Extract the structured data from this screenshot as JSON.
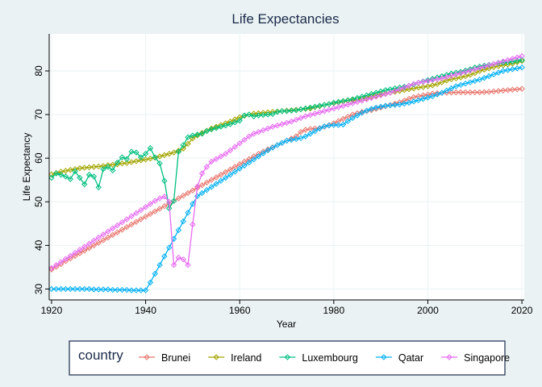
{
  "chart_data": {
    "type": "line",
    "title": "Life Expectancies",
    "xlabel": "Year",
    "ylabel": "Life Expectancy",
    "xlim": [
      1919.5,
      2020.5
    ],
    "ylim": [
      27.5,
      88.5
    ],
    "xticks": [
      1920,
      1940,
      1960,
      1980,
      2000,
      2020
    ],
    "yticks": [
      30,
      40,
      50,
      60,
      70,
      80
    ],
    "grid": true,
    "legend_title": "country",
    "legend_position": "bottom",
    "x_start": 1920,
    "series": [
      {
        "name": "Brunei",
        "color": "#e8766d",
        "values": [
          34.5,
          35.1,
          35.7,
          36.4,
          37.0,
          37.6,
          38.2,
          38.8,
          39.4,
          40.0,
          40.6,
          41.2,
          41.8,
          42.4,
          43.0,
          43.6,
          44.2,
          44.8,
          45.4,
          46.0,
          46.6,
          47.2,
          47.8,
          48.4,
          49.0,
          49.6,
          50.2,
          50.8,
          51.4,
          52.0,
          52.6,
          53.2,
          53.8,
          54.4,
          55.0,
          55.6,
          56.2,
          56.8,
          57.4,
          58.0,
          58.6,
          59.2,
          59.8,
          60.4,
          61.0,
          61.5,
          62.0,
          62.5,
          63.0,
          63.5,
          64.0,
          64.5,
          65.0,
          66.0,
          66.5,
          66.7,
          66.8,
          66.9,
          67.2,
          67.6,
          68.0,
          68.5,
          69.0,
          69.5,
          70.0,
          70.3,
          70.6,
          70.8,
          71.0,
          71.3,
          71.6,
          71.9,
          72.2,
          72.5,
          72.8,
          73.2,
          73.6,
          74.0,
          74.2,
          74.4,
          74.6,
          74.8,
          74.9,
          74.95,
          75.0,
          75.05,
          75.1,
          75.1,
          75.1,
          75.1,
          75.1,
          75.1,
          75.15,
          75.2,
          75.3,
          75.4,
          75.5,
          75.6,
          75.7,
          75.8,
          75.9
        ]
      },
      {
        "name": "Ireland",
        "color": "#a3a500",
        "values": [
          56.3,
          56.6,
          56.9,
          57.1,
          57.3,
          57.5,
          57.7,
          57.8,
          57.9,
          58.0,
          58.1,
          58.2,
          58.4,
          58.5,
          58.6,
          58.8,
          58.9,
          59.1,
          59.3,
          59.5,
          59.7,
          59.9,
          60.1,
          60.4,
          60.7,
          61.0,
          61.3,
          61.7,
          62.2,
          63.3,
          64.5,
          65.2,
          65.8,
          66.3,
          66.8,
          67.2,
          67.6,
          68.0,
          68.4,
          68.9,
          69.4,
          69.7,
          70.0,
          70.2,
          70.3,
          70.4,
          70.5,
          70.6,
          70.7,
          70.8,
          70.9,
          71.0,
          71.1,
          71.2,
          71.3,
          71.4,
          71.7,
          71.9,
          72.2,
          72.4,
          72.6,
          72.8,
          73.0,
          73.2,
          73.3,
          73.4,
          73.6,
          73.8,
          74.1,
          74.4,
          74.6,
          74.8,
          75.0,
          75.2,
          75.4,
          75.6,
          75.8,
          76.0,
          76.2,
          76.3,
          76.5,
          76.7,
          77.0,
          77.4,
          77.8,
          78.1,
          78.3,
          78.5,
          78.8,
          79.1,
          79.5,
          80.0,
          80.3,
          80.6,
          80.9,
          81.1,
          81.3,
          81.5,
          81.7,
          82.0,
          82.3
        ]
      },
      {
        "name": "Luxembourg",
        "color": "#00bf7d",
        "values": [
          55.5,
          56.5,
          56.2,
          55.8,
          55.2,
          57.0,
          55.5,
          54.0,
          56.2,
          55.8,
          53.3,
          57.5,
          58.0,
          57.2,
          59.0,
          60.2,
          59.8,
          61.5,
          61.3,
          60.2,
          61.0,
          62.3,
          60.2,
          58.8,
          54.8,
          48.5,
          50.2,
          61.5,
          63.0,
          64.8,
          65.2,
          65.4,
          65.6,
          66.2,
          66.6,
          66.9,
          67.2,
          67.5,
          67.8,
          68.2,
          68.6,
          69.8,
          70.0,
          69.6,
          69.8,
          69.9,
          70.0,
          70.1,
          70.6,
          70.8,
          70.8,
          70.9,
          71.0,
          71.2,
          71.4,
          71.6,
          71.8,
          72.0,
          72.2,
          72.4,
          72.7,
          72.9,
          73.1,
          73.3,
          73.5,
          73.8,
          74.1,
          74.4,
          74.7,
          75.0,
          75.3,
          75.6,
          75.8,
          76.0,
          76.2,
          76.4,
          76.6,
          76.9,
          77.3,
          77.6,
          77.9,
          78.2,
          78.5,
          78.8,
          79.1,
          79.4,
          79.6,
          79.8,
          80.1,
          80.4,
          80.8,
          81.0,
          81.2,
          81.4,
          81.6,
          81.8,
          81.9,
          82.0,
          82.1,
          82.3,
          82.5
        ]
      },
      {
        "name": "Qatar",
        "color": "#00b0f6",
        "values": [
          30.0,
          30.0,
          30.0,
          30.0,
          30.0,
          30.0,
          30.0,
          30.0,
          30.0,
          29.9,
          29.9,
          29.9,
          29.9,
          29.8,
          29.8,
          29.8,
          29.8,
          29.7,
          29.7,
          29.7,
          29.7,
          31.5,
          33.5,
          35.5,
          37.5,
          39.5,
          41.5,
          43.5,
          45.5,
          47.5,
          49.5,
          51.3,
          52.0,
          52.7,
          53.4,
          54.1,
          54.8,
          55.5,
          56.2,
          56.9,
          57.6,
          58.3,
          59.0,
          59.7,
          60.4,
          61.1,
          61.8,
          62.4,
          63.0,
          63.5,
          64.0,
          64.2,
          64.4,
          64.6,
          65.0,
          65.6,
          66.2,
          66.8,
          67.3,
          67.5,
          67.6,
          67.6,
          67.7,
          68.5,
          69.2,
          69.8,
          70.4,
          70.9,
          71.3,
          71.6,
          71.8,
          72.0,
          72.1,
          72.2,
          72.3,
          72.5,
          72.7,
          73.0,
          73.3,
          73.6,
          73.9,
          74.2,
          74.6,
          75.0,
          75.5,
          76.0,
          76.5,
          76.8,
          77.1,
          77.4,
          77.7,
          78.0,
          78.4,
          78.8,
          79.2,
          79.6,
          80.0,
          80.2,
          80.4,
          80.6,
          80.8
        ]
      },
      {
        "name": "Singapore",
        "color": "#e76bf3",
        "values": [
          34.8,
          35.5,
          36.2,
          36.9,
          37.6,
          38.3,
          39.0,
          39.7,
          40.4,
          41.1,
          41.8,
          42.5,
          43.2,
          43.9,
          44.6,
          45.3,
          46.0,
          46.7,
          47.4,
          48.1,
          48.8,
          49.5,
          50.2,
          50.8,
          51.2,
          50.0,
          35.5,
          37.2,
          36.8,
          35.5,
          44.8,
          53.5,
          56.5,
          58.0,
          59.2,
          59.8,
          60.4,
          61.0,
          61.8,
          62.6,
          63.4,
          64.2,
          65.0,
          65.6,
          66.0,
          66.4,
          66.8,
          67.2,
          67.5,
          67.8,
          68.1,
          68.4,
          68.8,
          69.2,
          69.6,
          69.9,
          70.2,
          70.5,
          70.8,
          71.1,
          71.4,
          71.7,
          72.0,
          72.3,
          72.6,
          72.9,
          73.2,
          73.5,
          73.8,
          74.1,
          74.4,
          74.7,
          75.0,
          75.4,
          75.8,
          76.2,
          76.6,
          77.0,
          77.3,
          77.5,
          77.7,
          77.9,
          78.1,
          78.3,
          78.6,
          78.9,
          79.2,
          79.5,
          79.8,
          80.1,
          80.4,
          80.7,
          81.0,
          81.3,
          81.6,
          81.9,
          82.2,
          82.5,
          82.8,
          83.1,
          83.4
        ]
      }
    ]
  }
}
